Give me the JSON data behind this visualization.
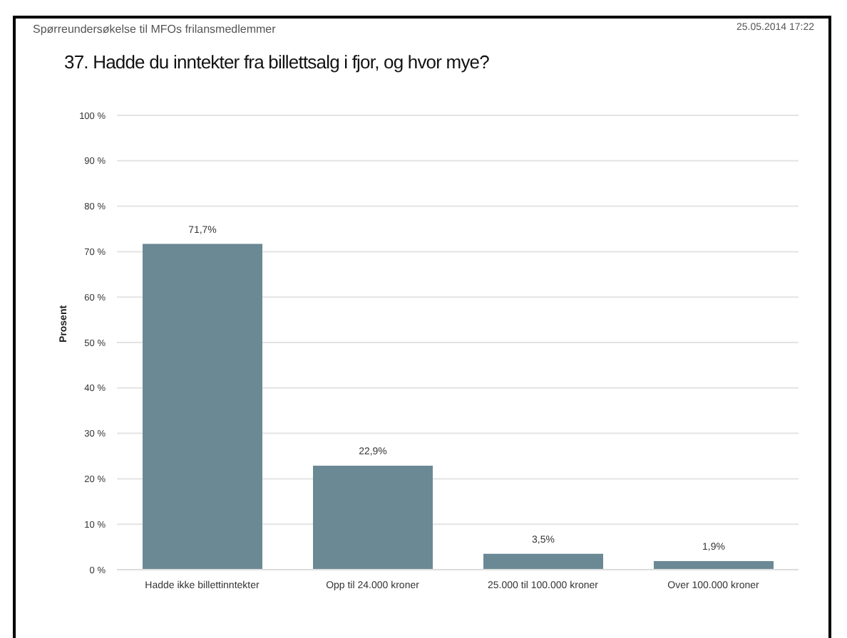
{
  "chart_data": {
    "type": "bar",
    "title": "37. Hadde du inntekter fra billettsalg i fjor, og hvor mye?",
    "annotations": [
      "Spørreundersøkelse til MFOs frilansmedlemmer",
      "25.05.2014 17:22"
    ],
    "ylabel": "Prosent",
    "categories": [
      "Hadde ikke billettinntekter",
      "Opp til 24.000 kroner",
      "25.000 til 100.000 kroner",
      "Over 100.000 kroner"
    ],
    "values": [
      71.7,
      22.9,
      3.5,
      1.9
    ],
    "value_labels": [
      "71,7%",
      "22,9%",
      "3,5%",
      "1,9%"
    ],
    "color": "#6a8995",
    "ylim": [
      0,
      100
    ],
    "yticks": [
      {
        "value": 0,
        "label": "0 %"
      },
      {
        "value": 10,
        "label": "10 %"
      },
      {
        "value": 20,
        "label": "20 %"
      },
      {
        "value": 30,
        "label": "30 %"
      },
      {
        "value": 40,
        "label": "40 %"
      },
      {
        "value": 50,
        "label": "50 %"
      },
      {
        "value": 60,
        "label": "60 %"
      },
      {
        "value": 70,
        "label": "70 %"
      },
      {
        "value": 80,
        "label": "80 %"
      },
      {
        "value": 90,
        "label": "90 %"
      },
      {
        "value": 100,
        "label": "100 %"
      }
    ],
    "grid": "y"
  }
}
